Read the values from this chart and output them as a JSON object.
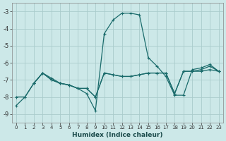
{
  "xlabel": "Humidex (Indice chaleur)",
  "bg_color": "#cce8e8",
  "grid_color": "#aacccc",
  "line_color": "#1a6b6b",
  "xlim": [
    -0.5,
    23.5
  ],
  "ylim": [
    -9.5,
    -2.5
  ],
  "yticks": [
    -9,
    -8,
    -7,
    -6,
    -5,
    -4,
    -3
  ],
  "xticks": [
    0,
    1,
    2,
    3,
    4,
    5,
    6,
    7,
    8,
    9,
    10,
    11,
    12,
    13,
    14,
    15,
    16,
    17,
    18,
    19,
    20,
    21,
    22,
    23
  ],
  "line1_x": [
    0,
    1,
    2,
    3,
    4,
    5,
    6,
    7,
    8,
    9,
    10,
    11,
    12,
    13,
    14,
    15,
    16,
    17,
    18,
    19,
    20,
    21,
    22,
    23
  ],
  "line1_y": [
    -8.5,
    -8.0,
    -7.2,
    -6.6,
    -6.9,
    -7.2,
    -7.3,
    -7.5,
    -7.8,
    -8.8,
    -4.3,
    -3.5,
    -3.1,
    -3.1,
    -3.2,
    -5.7,
    -6.2,
    -6.8,
    -7.9,
    -7.9,
    -6.4,
    -6.3,
    -6.1,
    -6.5
  ],
  "line2_x": [
    0,
    1,
    2,
    3,
    4,
    5,
    6,
    7,
    8,
    9,
    10,
    11,
    12,
    13,
    14,
    15,
    16,
    17,
    18,
    19,
    20,
    21,
    22,
    23
  ],
  "line2_y": [
    -8.0,
    -8.0,
    -7.2,
    -6.6,
    -7.0,
    -7.2,
    -7.3,
    -7.5,
    -7.5,
    -8.0,
    -6.6,
    -6.7,
    -6.8,
    -6.8,
    -6.7,
    -6.6,
    -6.6,
    -6.6,
    -7.8,
    -6.5,
    -6.5,
    -6.4,
    -6.2,
    -6.5
  ],
  "line3_x": [
    2,
    3,
    4,
    5,
    6,
    7,
    8,
    9,
    10,
    11,
    12,
    13,
    14,
    15,
    16,
    17,
    18,
    19,
    20,
    21,
    22,
    23
  ],
  "line3_y": [
    -7.2,
    -6.6,
    -7.0,
    -7.2,
    -7.3,
    -7.5,
    -7.5,
    -8.0,
    -6.6,
    -6.7,
    -6.8,
    -6.8,
    -6.7,
    -6.6,
    -6.6,
    -6.6,
    -7.8,
    -6.5,
    -6.5,
    -6.5,
    -6.4,
    -6.5
  ]
}
